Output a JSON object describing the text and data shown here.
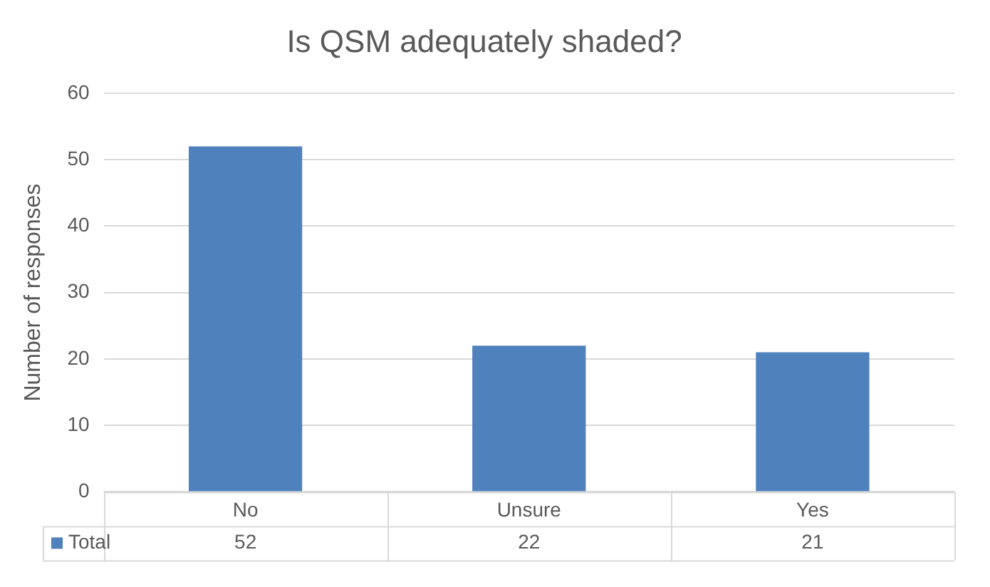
{
  "chart_data": {
    "type": "bar",
    "title": "Is QSM adequately shaded?",
    "ylabel": "Number of responses",
    "categories": [
      "No",
      "Unsure",
      "Yes"
    ],
    "series": [
      {
        "name": "Total",
        "color": "#4f81bd",
        "values": [
          52,
          22,
          21
        ]
      }
    ],
    "ylim": [
      0,
      60
    ],
    "yticks": [
      0,
      10,
      20,
      30,
      40,
      50,
      60
    ],
    "grid": "y",
    "legend": "bottom",
    "data_labels": true
  }
}
